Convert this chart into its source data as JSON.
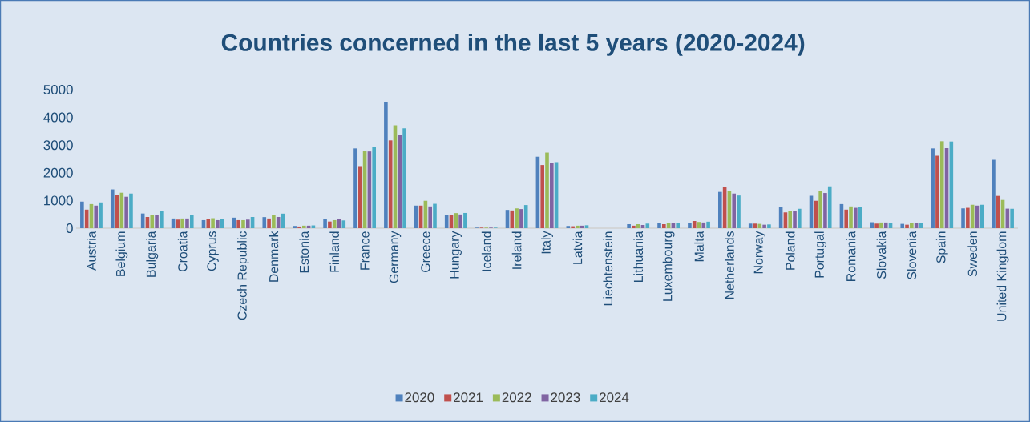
{
  "chart_data": {
    "type": "bar",
    "title": "Countries concerned in the last 5 years (2020-2024)",
    "categories": [
      "Austria",
      "Belgium",
      "Bulgaria",
      "Croatia",
      "Cyprus",
      "Czech Republic",
      "Denmark",
      "Estonia",
      "Finland",
      "France",
      "Germany",
      "Greece",
      "Hungary",
      "Iceland",
      "Ireland",
      "Italy",
      "Latvia",
      "Liechtenstein",
      "Lithuania",
      "Luxembourg",
      "Malta",
      "Netherlands",
      "Norway",
      "Poland",
      "Portugal",
      "Romania",
      "Slovakia",
      "Slovenia",
      "Spain",
      "Sweden",
      "United Kingdom"
    ],
    "series": [
      {
        "name": "2020",
        "color": "#4f81bd",
        "values": [
          960,
          1400,
          530,
          350,
          290,
          380,
          400,
          80,
          340,
          2880,
          4550,
          815,
          465,
          20,
          660,
          2580,
          80,
          null,
          145,
          175,
          185,
          1310,
          165,
          765,
          1170,
          870,
          215,
          155,
          2880,
          715,
          2470
        ]
      },
      {
        "name": "2021",
        "color": "#c0504d",
        "values": [
          670,
          1190,
          405,
          310,
          340,
          290,
          350,
          60,
          240,
          2240,
          3170,
          815,
          465,
          20,
          640,
          2280,
          70,
          null,
          90,
          145,
          260,
          1475,
          165,
          570,
          990,
          670,
          165,
          125,
          2615,
          735,
          1165
        ]
      },
      {
        "name": "2022",
        "color": "#9bbb59",
        "values": [
          870,
          1280,
          465,
          350,
          360,
          290,
          485,
          90,
          290,
          2780,
          3710,
          990,
          545,
          20,
          715,
          2730,
          90,
          null,
          145,
          175,
          225,
          1340,
          155,
          630,
          1340,
          785,
          205,
          175,
          3140,
          845,
          1020
        ]
      },
      {
        "name": "2023",
        "color": "#8064a2",
        "values": [
          815,
          1135,
          465,
          350,
          290,
          310,
          405,
          90,
          320,
          2770,
          3360,
          785,
          495,
          20,
          690,
          2355,
          90,
          null,
          115,
          185,
          205,
          1250,
          125,
          620,
          1270,
          735,
          205,
          175,
          2890,
          815,
          705
        ]
      },
      {
        "name": "2024",
        "color": "#4bacc6",
        "values": [
          930,
          1250,
          610,
          465,
          340,
          405,
          525,
          100,
          280,
          2935,
          3605,
          880,
          550,
          20,
          835,
          2385,
          105,
          null,
          165,
          175,
          235,
          1180,
          135,
          700,
          1510,
          755,
          175,
          175,
          3130,
          845,
          700
        ]
      }
    ],
    "ylim": [
      0,
      5000
    ],
    "yticks": [
      0,
      1000,
      2000,
      3000,
      4000,
      5000
    ],
    "grid": false,
    "legend": "bottom"
  }
}
